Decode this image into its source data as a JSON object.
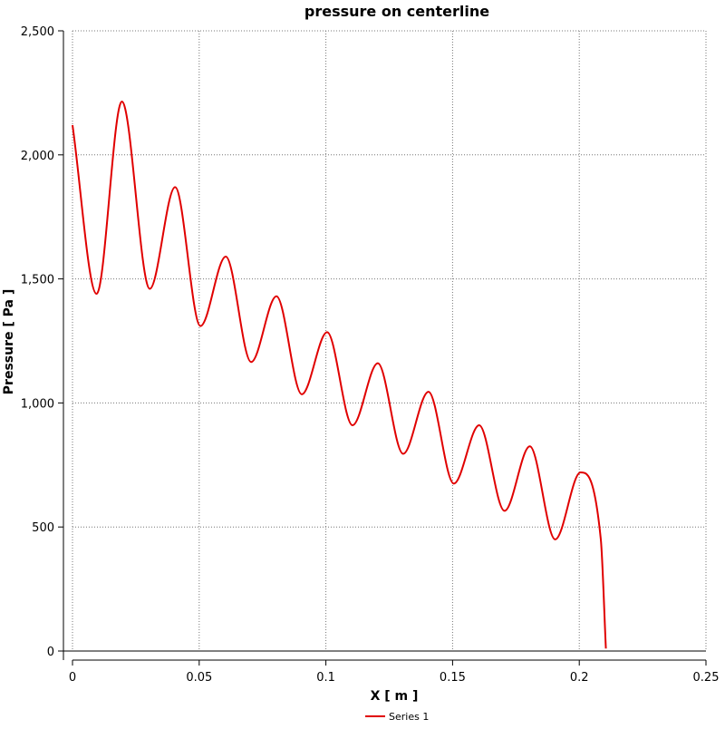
{
  "chart_data": {
    "type": "line",
    "title": "pressure on centerline",
    "xlabel": "X [ m ]",
    "ylabel": "Pressure [ Pa ]",
    "xlim": [
      0,
      0.25
    ],
    "ylim": [
      0,
      2500
    ],
    "x_ticks": [
      0,
      0.05,
      0.1,
      0.15,
      0.2,
      0.25
    ],
    "x_tick_labels": [
      "0",
      "0.05",
      "0.1",
      "0.15",
      "0.2",
      "0.25"
    ],
    "y_ticks": [
      0,
      500,
      1000,
      1500,
      2000,
      2500
    ],
    "y_tick_labels": [
      "0",
      "500",
      "1,000",
      "1,500",
      "2,000",
      "2,500"
    ],
    "grid": true,
    "legend_position": "bottom-center",
    "series": [
      {
        "name": "Series 1",
        "color": "#e00000",
        "x": [
          0,
          0.0095,
          0.0195,
          0.0305,
          0.0405,
          0.0505,
          0.0605,
          0.0705,
          0.0805,
          0.0905,
          0.1005,
          0.1105,
          0.1205,
          0.1305,
          0.1405,
          0.1505,
          0.1605,
          0.1705,
          0.1805,
          0.1905,
          0.2005,
          0.2085,
          0.2105
        ],
        "y": [
          2120,
          1440,
          2215,
          1460,
          1870,
          1310,
          1590,
          1165,
          1430,
          1035,
          1285,
          910,
          1160,
          795,
          1045,
          675,
          910,
          565,
          825,
          450,
          720,
          450,
          10
        ]
      }
    ]
  }
}
